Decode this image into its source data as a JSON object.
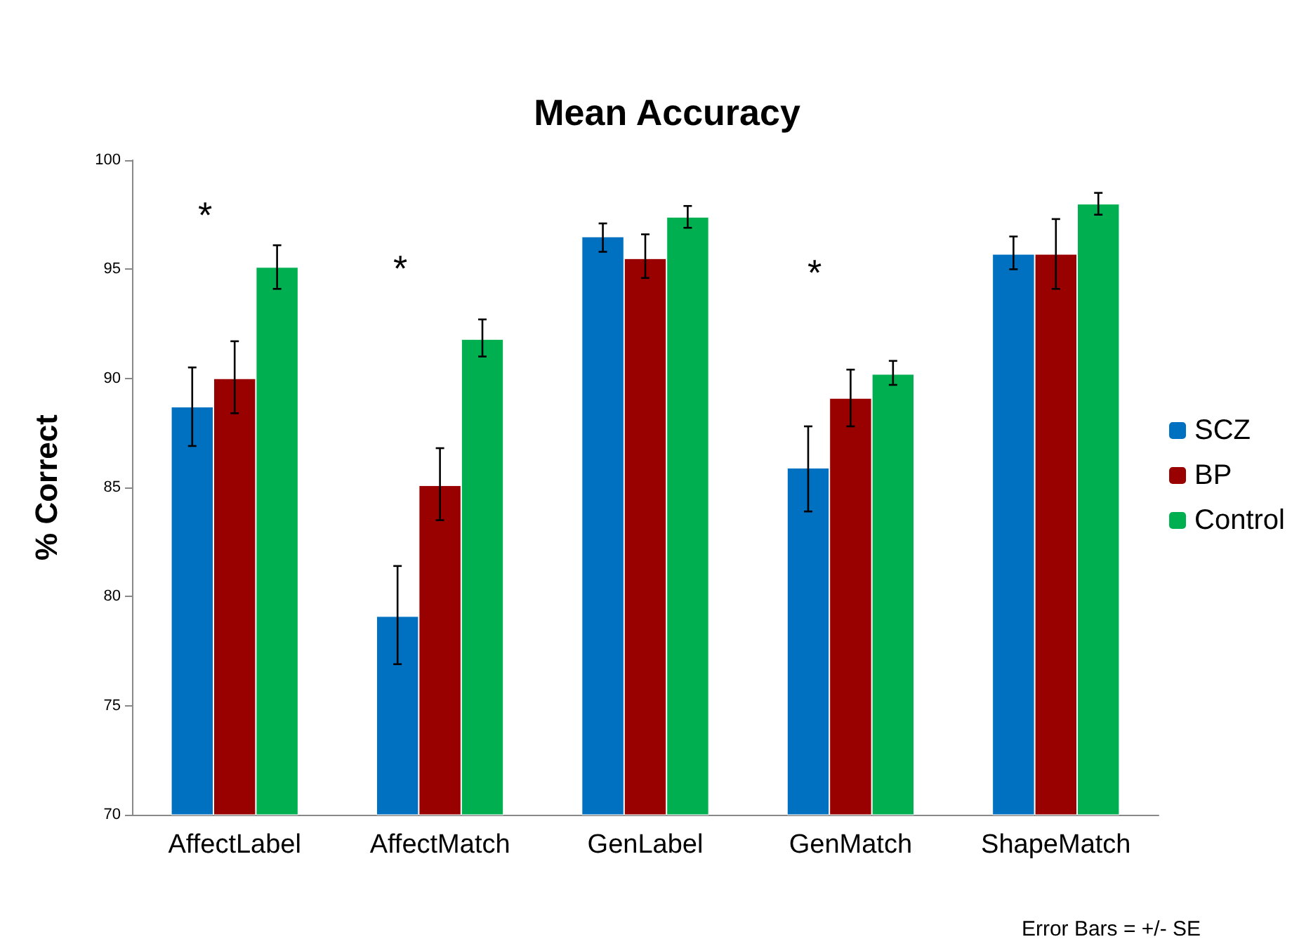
{
  "chart_data": {
    "type": "bar",
    "title": "Mean Accuracy",
    "ylabel": "% Correct",
    "categories": [
      "AffectLabel",
      "AffectMatch",
      "GenLabel",
      "GenMatch",
      "ShapeMatch"
    ],
    "series": [
      {
        "name": "SCZ",
        "color": "#0070c0",
        "values": [
          88.7,
          79.1,
          96.5,
          85.9,
          95.7
        ],
        "errors": [
          [
            86.9,
            90.5
          ],
          [
            76.9,
            81.4
          ],
          [
            95.8,
            97.1
          ],
          [
            83.9,
            87.8
          ],
          [
            95.0,
            96.5
          ]
        ]
      },
      {
        "name": "BP",
        "color": "#990000",
        "values": [
          90.0,
          85.1,
          95.5,
          89.1,
          95.7
        ],
        "errors": [
          [
            88.4,
            91.7
          ],
          [
            83.5,
            86.8
          ],
          [
            94.6,
            96.6
          ],
          [
            87.8,
            90.4
          ],
          [
            94.1,
            97.3
          ]
        ]
      },
      {
        "name": "Control",
        "color": "#00b050",
        "values": [
          95.1,
          91.8,
          97.4,
          90.2,
          98.0
        ],
        "errors": [
          [
            94.1,
            96.1
          ],
          [
            91.0,
            92.7
          ],
          [
            96.9,
            97.9
          ],
          [
            89.7,
            90.8
          ],
          [
            97.5,
            98.5
          ]
        ]
      }
    ],
    "ylim": [
      70,
      100
    ],
    "yticks": [
      70,
      75,
      80,
      85,
      90,
      95,
      100
    ],
    "grid": false,
    "legend": "right",
    "annotations": [
      "*",
      "*",
      "*",
      "Error Bars = +/- SE"
    ]
  }
}
